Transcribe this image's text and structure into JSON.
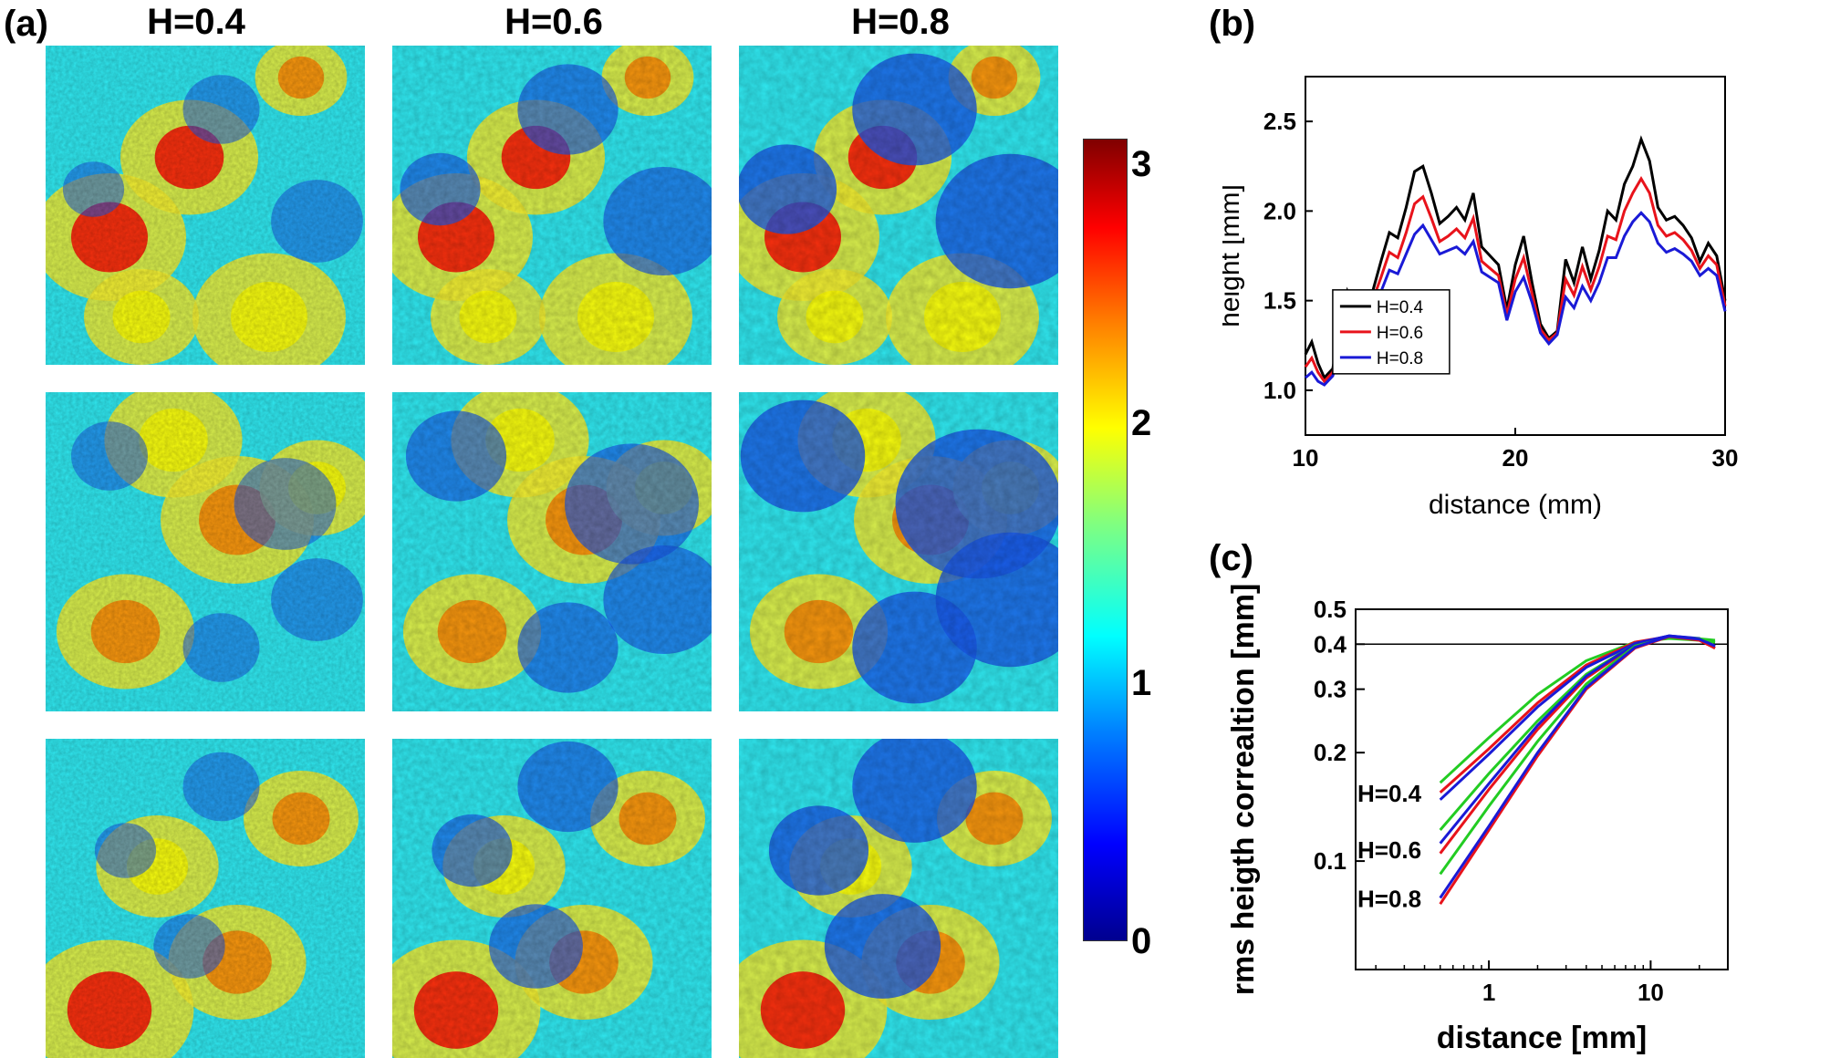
{
  "panel_labels": {
    "a": "(a)",
    "b": "(b)",
    "c": "(c)"
  },
  "maps": {
    "column_titles": [
      "H=0.4",
      "H=0.6",
      "H=0.8"
    ],
    "colorbar": {
      "min": 0,
      "max": 3,
      "ticks": [
        "0",
        "1",
        "2",
        "3"
      ],
      "colormap": "jet"
    }
  },
  "chart_data": [
    {
      "type": "line",
      "panel": "(b)",
      "xlabel": "distance (mm)",
      "ylabel": "height [mm]",
      "xlim": [
        10,
        30
      ],
      "ylim": [
        0.75,
        2.75
      ],
      "xticks": [
        10,
        20,
        30
      ],
      "yticks": [
        1.0,
        1.5,
        2.0,
        2.5
      ],
      "legend_position": "bottom-left",
      "series": [
        {
          "name": "H=0.4",
          "color": "#000000",
          "x": [
            10,
            10.3,
            10.6,
            10.9,
            11.3,
            11.6,
            12,
            12.4,
            12.8,
            13.2,
            13.6,
            14,
            14.4,
            14.8,
            15.2,
            15.6,
            16,
            16.4,
            16.8,
            17.2,
            17.6,
            18,
            18.4,
            18.8,
            19.2,
            19.6,
            20,
            20.4,
            20.8,
            21.2,
            21.6,
            22,
            22.4,
            22.8,
            23.2,
            23.6,
            24,
            24.4,
            24.8,
            25.2,
            25.6,
            26,
            26.4,
            26.8,
            27.2,
            27.6,
            28,
            28.4,
            28.8,
            29.2,
            29.6,
            30
          ],
          "values": [
            1.2,
            1.27,
            1.15,
            1.07,
            1.12,
            1.3,
            1.55,
            1.43,
            1.46,
            1.55,
            1.72,
            1.88,
            1.85,
            2.02,
            2.22,
            2.25,
            2.1,
            1.93,
            1.97,
            2.02,
            1.95,
            2.1,
            1.8,
            1.75,
            1.7,
            1.45,
            1.7,
            1.86,
            1.6,
            1.37,
            1.29,
            1.33,
            1.73,
            1.6,
            1.8,
            1.62,
            1.78,
            2.0,
            1.95,
            2.15,
            2.25,
            2.4,
            2.28,
            2.02,
            1.95,
            1.97,
            1.92,
            1.85,
            1.72,
            1.82,
            1.75,
            1.5
          ]
        },
        {
          "name": "H=0.6",
          "color": "#e8131b",
          "x": [
            10,
            10.3,
            10.6,
            10.9,
            11.3,
            11.6,
            12,
            12.4,
            12.8,
            13.2,
            13.6,
            14,
            14.4,
            14.8,
            15.2,
            15.6,
            16,
            16.4,
            16.8,
            17.2,
            17.6,
            18,
            18.4,
            18.8,
            19.2,
            19.6,
            20,
            20.4,
            20.8,
            21.2,
            21.6,
            22,
            22.4,
            22.8,
            23.2,
            23.6,
            24,
            24.4,
            24.8,
            25.2,
            25.6,
            26,
            26.4,
            26.8,
            27.2,
            27.6,
            28,
            28.4,
            28.8,
            29.2,
            29.6,
            30
          ],
          "values": [
            1.13,
            1.18,
            1.1,
            1.05,
            1.1,
            1.24,
            1.45,
            1.38,
            1.42,
            1.5,
            1.63,
            1.77,
            1.74,
            1.88,
            2.04,
            2.08,
            1.96,
            1.83,
            1.86,
            1.9,
            1.85,
            1.96,
            1.72,
            1.68,
            1.64,
            1.42,
            1.62,
            1.74,
            1.54,
            1.34,
            1.28,
            1.32,
            1.62,
            1.53,
            1.69,
            1.56,
            1.69,
            1.86,
            1.84,
            2.0,
            2.1,
            2.18,
            2.1,
            1.92,
            1.86,
            1.88,
            1.84,
            1.78,
            1.68,
            1.75,
            1.7,
            1.47
          ]
        },
        {
          "name": "H=0.8",
          "color": "#1a1ad6",
          "x": [
            10,
            10.3,
            10.6,
            10.9,
            11.3,
            11.6,
            12,
            12.4,
            12.8,
            13.2,
            13.6,
            14,
            14.4,
            14.8,
            15.2,
            15.6,
            16,
            16.4,
            16.8,
            17.2,
            17.6,
            18,
            18.4,
            18.8,
            19.2,
            19.6,
            20,
            20.4,
            20.8,
            21.2,
            21.6,
            22,
            22.4,
            22.8,
            23.2,
            23.6,
            24,
            24.4,
            24.8,
            25.2,
            25.6,
            26,
            26.4,
            26.8,
            27.2,
            27.6,
            28,
            28.4,
            28.8,
            29.2,
            29.6,
            30
          ],
          "values": [
            1.07,
            1.1,
            1.05,
            1.03,
            1.08,
            1.2,
            1.36,
            1.33,
            1.37,
            1.45,
            1.55,
            1.67,
            1.65,
            1.76,
            1.87,
            1.92,
            1.84,
            1.76,
            1.78,
            1.8,
            1.76,
            1.83,
            1.66,
            1.63,
            1.6,
            1.39,
            1.55,
            1.63,
            1.49,
            1.32,
            1.26,
            1.31,
            1.52,
            1.46,
            1.58,
            1.5,
            1.6,
            1.74,
            1.74,
            1.86,
            1.94,
            1.99,
            1.94,
            1.82,
            1.77,
            1.79,
            1.76,
            1.72,
            1.64,
            1.68,
            1.64,
            1.44
          ]
        }
      ]
    },
    {
      "type": "line",
      "panel": "(c)",
      "xlabel": "distance [mm]",
      "ylabel": "rms heigth correaltion [mm]",
      "x_scale": "log",
      "y_scale": "log",
      "xlim": [
        0.15,
        30
      ],
      "ylim": [
        0.05,
        0.5
      ],
      "xticks": [
        1,
        10
      ],
      "yticks": [
        0.1,
        0.2,
        0.3,
        0.4,
        0.5
      ],
      "reference_line_y": 0.4,
      "annotations": [
        "H=0.4",
        "H=0.6",
        "H=0.8"
      ],
      "series": [
        {
          "color": "#22cc22",
          "x": [
            0.5,
            1,
            2,
            4,
            8,
            13,
            20,
            25
          ],
          "values": [
            0.165,
            0.22,
            0.29,
            0.36,
            0.405,
            0.415,
            0.41,
            0.405
          ]
        },
        {
          "color": "#e8131b",
          "x": [
            0.5,
            1,
            2,
            4,
            8,
            13,
            20,
            25
          ],
          "values": [
            0.155,
            0.205,
            0.275,
            0.35,
            0.405,
            0.42,
            0.412,
            0.39
          ]
        },
        {
          "color": "#1a1ad6",
          "x": [
            0.5,
            1,
            2,
            4,
            8,
            13,
            20,
            25
          ],
          "values": [
            0.148,
            0.198,
            0.268,
            0.345,
            0.402,
            0.422,
            0.415,
            0.395
          ]
        },
        {
          "color": "#22cc22",
          "x": [
            0.5,
            1,
            2,
            4,
            8,
            13,
            20,
            25
          ],
          "values": [
            0.122,
            0.175,
            0.245,
            0.33,
            0.4,
            0.417,
            0.412,
            0.405
          ]
        },
        {
          "color": "#e8131b",
          "x": [
            0.5,
            1,
            2,
            4,
            8,
            13,
            20,
            25
          ],
          "values": [
            0.105,
            0.158,
            0.232,
            0.322,
            0.398,
            0.42,
            0.412,
            0.39
          ]
        },
        {
          "color": "#1a1ad6",
          "x": [
            0.5,
            1,
            2,
            4,
            8,
            13,
            20,
            25
          ],
          "values": [
            0.112,
            0.164,
            0.238,
            0.326,
            0.4,
            0.422,
            0.414,
            0.395
          ]
        },
        {
          "color": "#22cc22",
          "x": [
            0.5,
            1,
            2,
            4,
            8,
            13,
            20,
            25
          ],
          "values": [
            0.092,
            0.142,
            0.215,
            0.31,
            0.395,
            0.418,
            0.414,
            0.41
          ]
        },
        {
          "color": "#e8131b",
          "x": [
            0.5,
            1,
            2,
            4,
            8,
            13,
            20,
            25
          ],
          "values": [
            0.076,
            0.122,
            0.196,
            0.3,
            0.39,
            0.42,
            0.41,
            0.39
          ]
        },
        {
          "color": "#1a1ad6",
          "x": [
            0.5,
            1,
            2,
            4,
            8,
            13,
            20,
            25
          ],
          "values": [
            0.079,
            0.125,
            0.2,
            0.303,
            0.392,
            0.421,
            0.413,
            0.395
          ]
        }
      ]
    }
  ]
}
